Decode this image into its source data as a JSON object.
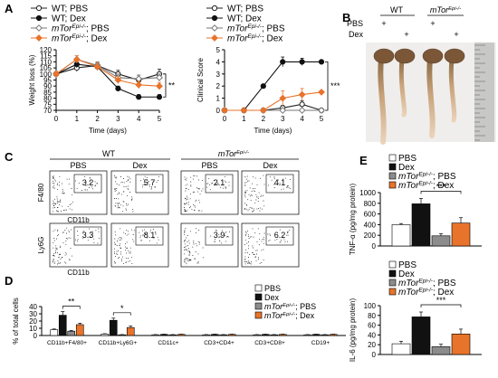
{
  "panels": {
    "A": "A",
    "B": "B",
    "C": "C",
    "D": "D",
    "E": "E"
  },
  "legend_a": [
    {
      "name": "WT; PBS",
      "color": "#222222",
      "marker": "circle-open"
    },
    {
      "name": "WT; Dex",
      "color": "#111111",
      "marker": "circle-filled"
    },
    {
      "name": "mTorEpi-/-; PBS",
      "color": "#777777",
      "marker": "diamond-open"
    },
    {
      "name": "mTorEpi-/-; Dex",
      "color": "#e8732a",
      "marker": "diamond-filled"
    }
  ],
  "legend_bars": [
    {
      "name": "PBS",
      "color": "#ffffff"
    },
    {
      "name": "Dex",
      "color": "#111111"
    },
    {
      "name": "mTorEpi-/-; PBS",
      "color": "#8c8c8c"
    },
    {
      "name": "mTorEpi-/-; Dex",
      "color": "#e8732a"
    }
  ],
  "photo": {
    "wt": "WT",
    "ko": "mTorEpi-/-",
    "pbs": "PBS",
    "dex": "Dex",
    "plus": "+"
  },
  "flow": {
    "wt": "WT",
    "ko": "mTorEpi-/-",
    "pbs": "PBS",
    "dex": "Dex",
    "row1_ylabel": "F4/80",
    "row2_ylabel": "Ly6G",
    "xlabel": "CD11b",
    "row1_values": [
      "3.2",
      "5.7",
      "2.1",
      "4.1"
    ],
    "row2_values": [
      "3.3",
      "8.1",
      "3.9",
      "6.2"
    ]
  },
  "chart_data": [
    {
      "id": "weight",
      "type": "line",
      "xlabel": "Time (days)",
      "ylabel": "Weight loss (%)",
      "x": [
        0,
        1,
        2,
        3,
        4,
        5
      ],
      "ylim": [
        70,
        120
      ],
      "yticks": [
        70,
        75,
        80,
        85,
        90,
        95,
        100,
        105,
        110,
        115,
        120
      ],
      "significance": "**",
      "series": [
        {
          "name": "WT; PBS",
          "values": [
            100,
            105,
            107,
            100,
            95,
            100
          ],
          "errors": [
            2,
            3,
            3,
            3,
            4,
            4
          ]
        },
        {
          "name": "WT; Dex",
          "values": [
            100,
            108,
            106,
            88,
            81,
            81
          ],
          "errors": [
            2,
            3,
            3,
            2,
            2,
            2
          ]
        },
        {
          "name": "mTorEpi-/-; PBS",
          "values": [
            100,
            112,
            107,
            97,
            96,
            97
          ],
          "errors": [
            2,
            3,
            3,
            3,
            3,
            3
          ]
        },
        {
          "name": "mTorEpi-/-; Dex",
          "values": [
            100,
            112,
            106,
            95,
            91,
            90
          ],
          "errors": [
            2,
            3,
            3,
            3,
            3,
            3
          ]
        }
      ]
    },
    {
      "id": "clinical",
      "type": "line",
      "xlabel": "Time (days)",
      "ylabel": "Clinical Score",
      "x": [
        0,
        1,
        2,
        3,
        4,
        5
      ],
      "ylim": [
        0,
        5
      ],
      "yticks": [
        0,
        1,
        2,
        3,
        4,
        5
      ],
      "significance": "***",
      "series": [
        {
          "name": "WT; PBS",
          "values": [
            0,
            0,
            0,
            0.2,
            0.5,
            0
          ],
          "errors": [
            0,
            0,
            0,
            0.2,
            0.3,
            0
          ]
        },
        {
          "name": "WT; Dex",
          "values": [
            0,
            0,
            2,
            4,
            4,
            4
          ],
          "errors": [
            0,
            0,
            0,
            0.4,
            0.3,
            0
          ]
        },
        {
          "name": "mTorEpi-/-; PBS",
          "values": [
            0,
            0,
            0,
            0,
            0,
            0
          ],
          "errors": [
            0,
            0,
            0,
            0,
            0,
            0
          ]
        },
        {
          "name": "mTorEpi-/-; Dex",
          "values": [
            0,
            0,
            0,
            1,
            1.3,
            1.5
          ],
          "errors": [
            0,
            0,
            0,
            0.6,
            0.5,
            0
          ]
        }
      ]
    },
    {
      "id": "percent",
      "type": "bar",
      "ylabel": "% of total cells",
      "categories": [
        "CD11b+F4/80+",
        "CD11b+Ly6G+",
        "CD11c+",
        "CD3+CD4+",
        "CD3+CD8+",
        "CD19+"
      ],
      "ylim": [
        0,
        40
      ],
      "yticks": [
        0,
        10,
        20,
        30,
        40
      ],
      "series": [
        {
          "name": "PBS",
          "values": [
            8,
            2,
            1,
            1,
            1,
            1
          ],
          "errors": [
            1,
            0.5,
            0.3,
            0.3,
            0.3,
            0.3
          ]
        },
        {
          "name": "Dex",
          "values": [
            28,
            21,
            1.5,
            1.5,
            1.5,
            1.5
          ],
          "errors": [
            5,
            3,
            0.3,
            0.3,
            0.3,
            0.3
          ]
        },
        {
          "name": "mTorEpi-/-; PBS",
          "values": [
            6,
            1,
            1,
            1,
            1,
            1
          ],
          "errors": [
            1,
            0.3,
            0.3,
            0.3,
            0.3,
            0.3
          ]
        },
        {
          "name": "mTorEpi-/-; Dex",
          "values": [
            15,
            11,
            1.5,
            1.5,
            1.5,
            1.5
          ],
          "errors": [
            2,
            2,
            0.3,
            0.3,
            0.3,
            0.3
          ]
        }
      ],
      "significance": [
        {
          "category": 0,
          "from": 1,
          "to": 3,
          "label": "**"
        },
        {
          "category": 1,
          "from": 1,
          "to": 3,
          "label": "*"
        }
      ]
    },
    {
      "id": "tnf",
      "type": "bar",
      "ylabel": "TNF-α (pg/mg protein)",
      "ylim": [
        0,
        1000
      ],
      "yticks": [
        0,
        200,
        400,
        600,
        800,
        1000
      ],
      "series": [
        {
          "name": "PBS",
          "values": [
            400
          ],
          "errors": [
            20
          ]
        },
        {
          "name": "Dex",
          "values": [
            790
          ],
          "errors": [
            100
          ]
        },
        {
          "name": "mTorEpi-/-; PBS",
          "values": [
            190
          ],
          "errors": [
            40
          ]
        },
        {
          "name": "mTorEpi-/-; Dex",
          "values": [
            430
          ],
          "errors": [
            100
          ]
        }
      ],
      "significance": [
        {
          "from": 1,
          "to": 3,
          "label": "***"
        }
      ]
    },
    {
      "id": "il6",
      "type": "bar",
      "ylabel": "IL-6 (pg/mg protein)",
      "ylim": [
        0,
        100
      ],
      "yticks": [
        0,
        20,
        40,
        60,
        80,
        100
      ],
      "series": [
        {
          "name": "PBS",
          "values": [
            22
          ],
          "errors": [
            5
          ]
        },
        {
          "name": "Dex",
          "values": [
            77
          ],
          "errors": [
            10
          ]
        },
        {
          "name": "mTorEpi-/-; PBS",
          "values": [
            16
          ],
          "errors": [
            5
          ]
        },
        {
          "name": "mTorEpi-/-; Dex",
          "values": [
            42
          ],
          "errors": [
            10
          ]
        }
      ],
      "significance": [
        {
          "from": 1,
          "to": 3,
          "label": "***"
        }
      ]
    }
  ]
}
